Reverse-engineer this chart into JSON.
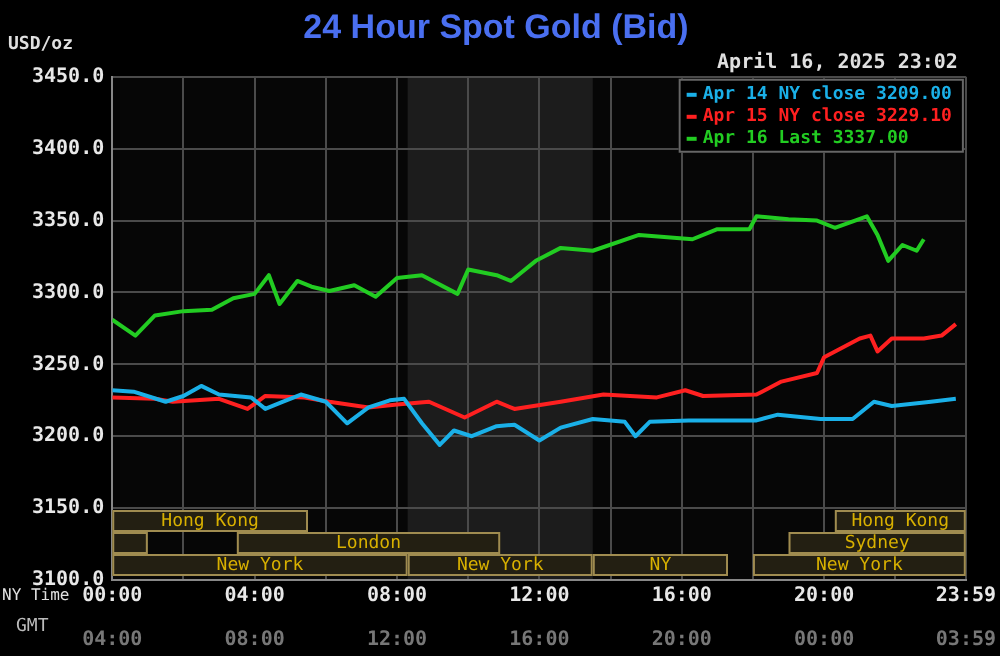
{
  "chart_data": {
    "type": "line",
    "title": "24 Hour Spot Gold (Bid)",
    "subtitle": "April 16, 2025 23:02",
    "ylabel": "USD/oz",
    "xlabel": "NY Time",
    "x2label": "GMT",
    "xlim": [
      0,
      23.983
    ],
    "xticks": [
      {
        "value": 0,
        "label": "00:00"
      },
      {
        "value": 2,
        "label": null
      },
      {
        "value": 4,
        "label": "04:00"
      },
      {
        "value": 6,
        "label": null
      },
      {
        "value": 8,
        "label": "08:00"
      },
      {
        "value": 10,
        "label": null
      },
      {
        "value": 12,
        "label": "12:00"
      },
      {
        "value": 14,
        "label": null
      },
      {
        "value": 16,
        "label": "16:00"
      },
      {
        "value": 18,
        "label": null
      },
      {
        "value": 20,
        "label": "20:00"
      },
      {
        "value": 22,
        "label": null
      },
      {
        "value": 23.983,
        "label": "23:59"
      }
    ],
    "x2lim": [
      "2025-04-16T04:00",
      "2025-04-17T03:59"
    ],
    "x2ticks": [
      {
        "value": "2025-04-16T04:00",
        "label": "04:00"
      },
      {
        "value": "2025-04-16T08:00",
        "label": "08:00"
      },
      {
        "value": "2025-04-16T12:00",
        "label": "12:00"
      },
      {
        "value": "2025-04-16T16:00",
        "label": "16:00"
      },
      {
        "value": "2025-04-16T20:00",
        "label": "20:00"
      },
      {
        "value": "2025-04-17T00:00",
        "label": "00:00"
      },
      {
        "value": "2025-04-17T03:59",
        "label": "03:59"
      }
    ],
    "ylim": [
      3100,
      3450
    ],
    "yticks": [
      {
        "value": 3100,
        "label": "3100.0"
      },
      {
        "value": 3150,
        "label": "3150.0"
      },
      {
        "value": 3200,
        "label": "3200.0"
      },
      {
        "value": 3250,
        "label": "3250.0"
      },
      {
        "value": 3300,
        "label": "3300.0"
      },
      {
        "value": 3350,
        "label": "3350.0"
      },
      {
        "value": 3400,
        "label": "3400.0"
      },
      {
        "value": 3450,
        "label": "3450.0"
      }
    ],
    "grid": true,
    "legend": "top right",
    "marker": "none",
    "line_style": "solid",
    "bands": [
      {
        "axis": "x",
        "from": 8.3,
        "to": 13.5,
        "color": "#1c1c1c"
      },
      {
        "axis": "x",
        "from": 0,
        "to": 8.3,
        "label": "New York",
        "color": "#a08c50"
      },
      {
        "axis": "x",
        "from": 8.3,
        "to": 13.5,
        "label": "New York",
        "color": "#a08c50"
      },
      {
        "axis": "x",
        "from": 13.5,
        "to": 17.3,
        "label": "NY",
        "color": "#a08c50"
      },
      {
        "axis": "x",
        "from": 18.0,
        "to": 23.98,
        "label": "New York",
        "color": "#a08c50"
      },
      {
        "axis": "x",
        "from": 0,
        "to": 1,
        "label": null,
        "color": "#a08c50"
      },
      {
        "axis": "x",
        "from": 3.5,
        "to": 10.9,
        "label": "London",
        "color": "#a08c50"
      },
      {
        "axis": "x",
        "from": 19.0,
        "to": 23.98,
        "label": "Sydney",
        "color": "#a08c50"
      },
      {
        "axis": "x",
        "from": 0,
        "to": 5.5,
        "label": "Hong Kong",
        "color": "#a08c50"
      },
      {
        "axis": "x",
        "from": 20.3,
        "to": 23.98,
        "label": "Hong Kong",
        "color": "#a08c50"
      }
    ],
    "series": [
      {
        "name": "Apr 14 NY close 3209.00",
        "color": "#1ab0e8",
        "x": [
          0,
          0.6,
          1.5,
          2,
          2.5,
          3,
          3.9,
          4.3,
          4.8,
          5.3,
          6,
          6.6,
          7.2,
          7.8,
          8.2,
          8.7,
          9.2,
          9.6,
          10.1,
          10.8,
          11.3,
          12,
          12.6,
          13.5,
          14.4,
          14.7,
          15.1,
          16.2,
          18.1,
          18.7,
          19.9,
          20.8,
          21.4,
          21.9,
          23,
          23.7
        ],
        "values": [
          3232,
          3231,
          3224,
          3228,
          3235,
          3229,
          3227,
          3219,
          3224,
          3229,
          3224,
          3209,
          3220,
          3225,
          3226,
          3209,
          3194,
          3204,
          3200,
          3207,
          3208,
          3197,
          3206,
          3212,
          3210,
          3200,
          3210,
          3211,
          3211,
          3215,
          3212,
          3212,
          3224,
          3221,
          3224,
          3226
        ]
      },
      {
        "name": "Apr 15 NY close 3229.10",
        "color": "#ff2020",
        "x": [
          0,
          1.2,
          1.7,
          3,
          3.8,
          4.3,
          5.4,
          6.1,
          7.2,
          8,
          8.9,
          9.9,
          10.8,
          11.3,
          12.6,
          13.8,
          15.3,
          16.1,
          16.6,
          18.1,
          18.8,
          19.8,
          20,
          21,
          21.3,
          21.5,
          21.9,
          22.8,
          23.3,
          23.7
        ],
        "values": [
          3227,
          3226,
          3224,
          3226,
          3219,
          3228,
          3227,
          3224,
          3220,
          3222,
          3224,
          3213,
          3224,
          3219,
          3224,
          3229,
          3227,
          3232,
          3228,
          3229,
          3238,
          3244,
          3255,
          3268,
          3270,
          3259,
          3268,
          3268,
          3270,
          3278
        ]
      },
      {
        "name": "Apr 16 Last 3337.00",
        "color": "#22cc22",
        "x": [
          0,
          0.65,
          1.2,
          2,
          2.8,
          3.4,
          4,
          4.4,
          4.7,
          5.2,
          5.6,
          6.1,
          6.8,
          7.4,
          8,
          8.7,
          9.7,
          10,
          10.8,
          11.2,
          11.9,
          12.6,
          13.5,
          14.8,
          16.3,
          17,
          17.9,
          18.1,
          19,
          19.8,
          20.3,
          21.2,
          21.5,
          21.8,
          22.2,
          22.6,
          22.8
        ],
        "values": [
          3281,
          3270,
          3284,
          3287,
          3288,
          3296,
          3299,
          3312,
          3292,
          3308,
          3304,
          3301,
          3305,
          3297,
          3310,
          3312,
          3299,
          3316,
          3312,
          3308,
          3322,
          3331,
          3329,
          3340,
          3337,
          3344,
          3344,
          3353,
          3351,
          3350,
          3345,
          3353,
          3340,
          3322,
          3333,
          3329,
          3337
        ]
      }
    ]
  }
}
